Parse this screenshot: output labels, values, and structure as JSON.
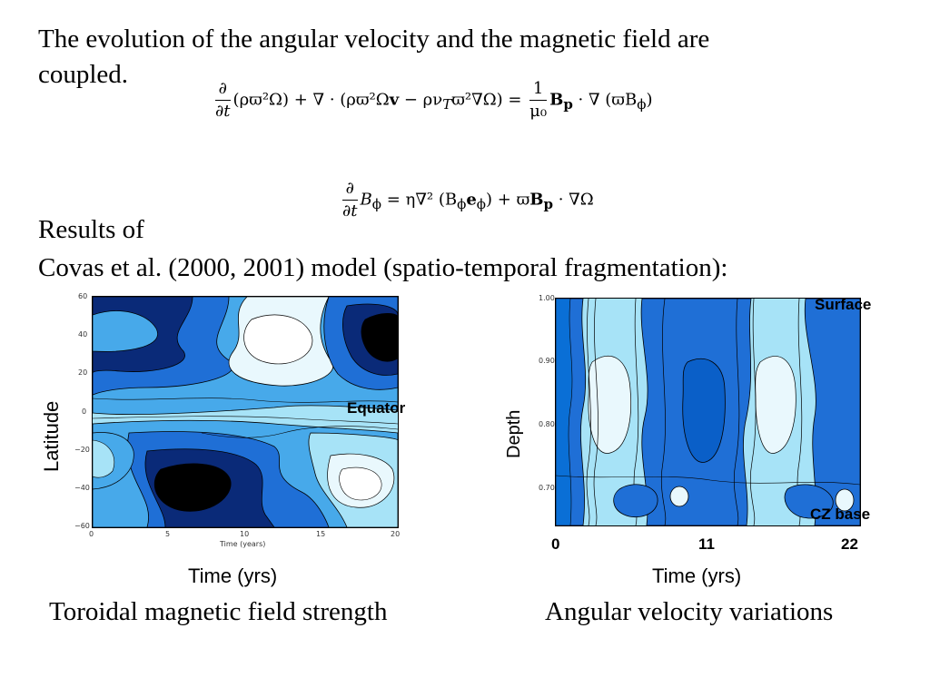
{
  "slide": {
    "intro_line1": "The evolution of the angular velocity and the magnetic field are",
    "intro_line2": "coupled.",
    "results_line1": "Results of",
    "results_line2": "Covas et al. (2000, 2001) model (spatio-temporal fragmentation):"
  },
  "equations": {
    "partial": "∂",
    "dt": "∂t",
    "eq1_term1": "(ρϖ²Ω)",
    "eq1_term2": " + ∇ · (ρϖ²Ω",
    "eq1_v": "v",
    "eq1_term3": " − ρν",
    "eq1_T": "T",
    "eq1_term4": "ϖ²∇Ω)  =  ",
    "eq1_one": "1",
    "eq1_mu": "μ₀",
    "eq1_Bp": "B",
    "eq1_p": "p",
    "eq1_term5": " · ∇ (ϖB",
    "eq1_phi": "ϕ",
    "eq1_close": ")",
    "eq2_B": "B",
    "eq2_phi": "ϕ",
    "eq2_term1": "  =  η∇² (B",
    "eq2_e": "e",
    "eq2_term2": ") + ϖ",
    "eq2_Bp": "B",
    "eq2_p": "p",
    "eq2_term3": " · ∇Ω"
  },
  "left_plot": {
    "ylabel": "Latitude",
    "xlabel": "Time (yrs)",
    "caption": "Toroidal magnetic field strength",
    "annotation": "Equator",
    "inner_axis_label": "Time (years)",
    "yticks": [
      "60",
      "40",
      "20",
      "0",
      "−20",
      "−40",
      "−60"
    ],
    "xticks": [
      "0",
      "5",
      "10",
      "15",
      "20"
    ]
  },
  "right_plot": {
    "ylabel": "Depth",
    "xlabel": "Time (yrs)",
    "caption": "Angular velocity variations",
    "annotation_top": "Surface",
    "annotation_bottom": "CZ base",
    "yticks": [
      "1.00",
      "0.90",
      "0.80",
      "0.70"
    ],
    "xticks": [
      "0",
      "11",
      "22"
    ]
  },
  "colors": {
    "black": "#000000",
    "navy": "#0a2a78",
    "blue": "#1f6fd6",
    "mid_blue": "#47a9ea",
    "light_blue": "#a7e3f7",
    "pale": "#e9f8fd",
    "white": "#ffffff"
  }
}
